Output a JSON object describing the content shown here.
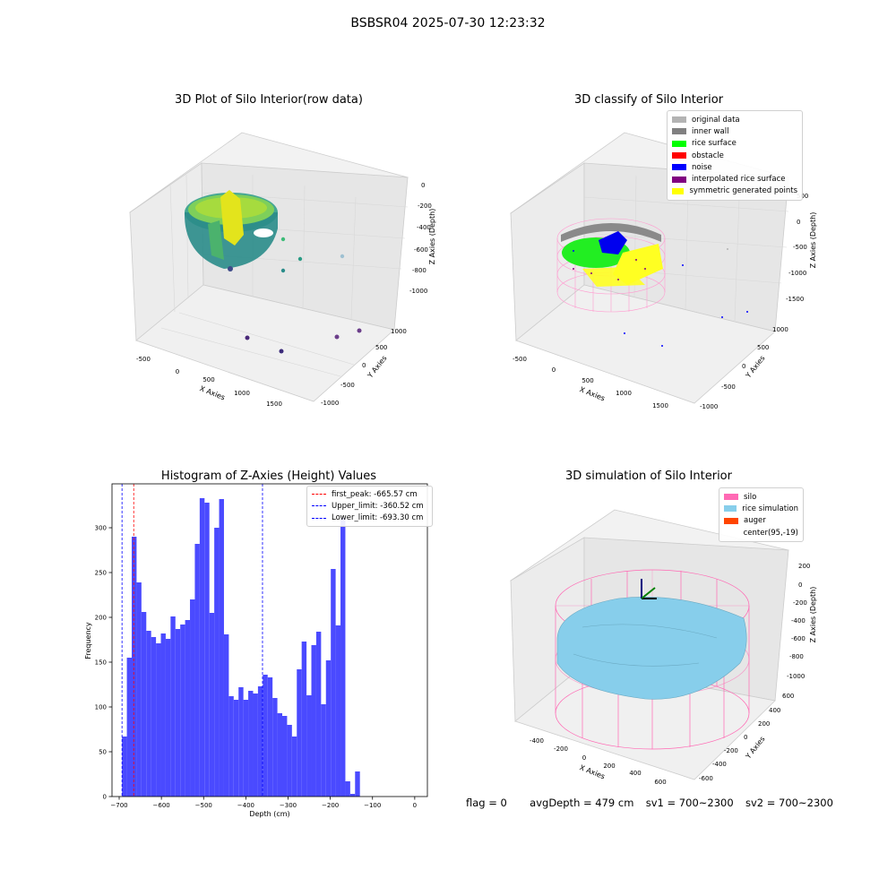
{
  "figure": {
    "suptitle": "BSBSR04 2025-07-30 12:23:32"
  },
  "panels": {
    "p1": {
      "title": "3D Plot of Silo Interior(row data)",
      "xlabel": "X Axies",
      "ylabel": "Y Axies",
      "zlabel": "Z Axies (Depth)",
      "xticks": [
        "-500",
        "0",
        "500",
        "1000",
        "1500"
      ],
      "yticks": [
        "1000",
        "500",
        "0",
        "-500",
        "-1000"
      ],
      "zticks": [
        "0",
        "-200",
        "-400",
        "-600",
        "-800",
        "-1000"
      ]
    },
    "p2": {
      "title": "3D classify of Silo Interior",
      "xlabel": "X Axies",
      "ylabel": "Y Axies",
      "zlabel": "Z Axies (Depth)",
      "xticks": [
        "-500",
        "0",
        "500",
        "1000",
        "1500"
      ],
      "yticks": [
        "1000",
        "500",
        "0",
        "-500",
        "-1000"
      ],
      "zticks": [
        "500",
        "0",
        "-500",
        "-1000",
        "-1500"
      ],
      "legend": [
        {
          "label": "original data",
          "color": "#b3b3b3"
        },
        {
          "label": "inner wall",
          "color": "#808080"
        },
        {
          "label": "rice surface",
          "color": "#00ff00"
        },
        {
          "label": "obstacle",
          "color": "#ff0000"
        },
        {
          "label": "noise",
          "color": "#0000ff"
        },
        {
          "label": "interpolated rice surface",
          "color": "#800080"
        },
        {
          "label": "symmetric generated points",
          "color": "#ffff00"
        }
      ]
    },
    "p4": {
      "title": "3D simulation of Silo Interior",
      "xlabel": "X Axies",
      "ylabel": "Y Axies",
      "zlabel": "Z Axies (Depth)",
      "xticks": [
        "-400",
        "-200",
        "0",
        "200",
        "400",
        "600"
      ],
      "yticks": [
        "600",
        "400",
        "200",
        "0",
        "-200",
        "-400",
        "-600"
      ],
      "zticks": [
        "200",
        "0",
        "-200",
        "-400",
        "-600",
        "-800",
        "-1000"
      ],
      "legend": [
        {
          "label": "silo",
          "color": "#ff69b4"
        },
        {
          "label": "rice simulation",
          "color": "#87ceeb"
        },
        {
          "label": "auger",
          "color": "#ff4500"
        },
        {
          "label": "center(95,-19)",
          "color": ""
        }
      ]
    }
  },
  "chart_data": [
    {
      "type": "bar",
      "title": "Histogram of Z-Axies (Height) Values",
      "xlabel": "Depth (cm)",
      "ylabel": "Frequency",
      "xlim": [
        -717,
        30
      ],
      "ylim": [
        0,
        349
      ],
      "xticks": [
        -700,
        -600,
        -500,
        -400,
        -300,
        -200,
        -100,
        0
      ],
      "yticks": [
        0,
        50,
        100,
        150,
        200,
        250,
        300
      ],
      "bin_start": -693.3,
      "bin_width": 11.5,
      "color": "#4a4aff",
      "values": [
        67,
        155,
        290,
        239,
        206,
        185,
        178,
        171,
        182,
        176,
        201,
        187,
        192,
        197,
        220,
        282,
        333,
        328,
        205,
        300,
        332,
        181,
        112,
        108,
        122,
        108,
        118,
        115,
        123,
        136,
        133,
        110,
        93,
        90,
        80,
        67,
        142,
        173,
        113,
        169,
        184,
        103,
        152,
        254,
        191,
        311,
        17,
        3,
        28
      ],
      "vlines": [
        {
          "label": "first_peak: -665.57 cm",
          "x": -665.57,
          "color": "#ff0000"
        },
        {
          "label": "Upper_limit: -360.52 cm",
          "x": -360.52,
          "color": "#0000ff"
        },
        {
          "label": "Lower_limit: -693.30 cm",
          "x": -693.3,
          "color": "#0000ff"
        }
      ]
    }
  ],
  "status": {
    "flag": "flag = 0",
    "avg": "avgDepth = 479 cm",
    "sv1": "sv1 = 700~2300",
    "sv2": "sv2 = 700~2300"
  }
}
